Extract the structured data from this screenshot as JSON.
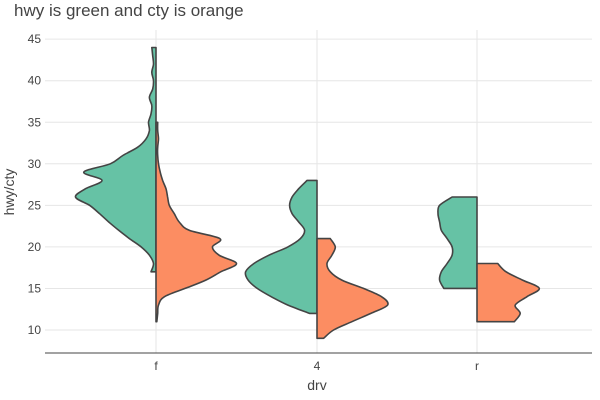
{
  "chart_data": {
    "type": "split-violin",
    "title": "hwy is green and cty is orange",
    "xlabel": "drv",
    "ylabel": "hwy/cty",
    "categories": [
      "f",
      "4",
      "r"
    ],
    "yticks": [
      10,
      15,
      20,
      25,
      30,
      35,
      40,
      45
    ],
    "ylim": [
      7.5,
      45.5
    ],
    "grid": true,
    "series": [
      {
        "side": "left",
        "color": "#66c2a5"
      },
      {
        "side": "right",
        "color": "#fc8d62"
      }
    ],
    "violins": [
      {
        "category": "f",
        "side": "left",
        "color": "#66c2a5",
        "range": [
          17,
          44
        ],
        "profile": [
          [
            17,
            0.06
          ],
          [
            18,
            0.03
          ],
          [
            19,
            0.08
          ],
          [
            20,
            0.18
          ],
          [
            21,
            0.32
          ],
          [
            22,
            0.45
          ],
          [
            23,
            0.57
          ],
          [
            24,
            0.68
          ],
          [
            25,
            0.8
          ],
          [
            26,
            0.97
          ],
          [
            27,
            0.85
          ],
          [
            28,
            0.65
          ],
          [
            29,
            0.87
          ],
          [
            30,
            0.55
          ],
          [
            31,
            0.4
          ],
          [
            32,
            0.22
          ],
          [
            33,
            0.12
          ],
          [
            34,
            0.08
          ],
          [
            35,
            0.09
          ],
          [
            36,
            0.06
          ],
          [
            37,
            0.05
          ],
          [
            38,
            0.08
          ],
          [
            39,
            0.04
          ],
          [
            40,
            0.03
          ],
          [
            41,
            0.05
          ],
          [
            42,
            0.03
          ],
          [
            43,
            0.04
          ],
          [
            44,
            0.05
          ]
        ]
      },
      {
        "category": "f",
        "side": "right",
        "color": "#fc8d62",
        "range": [
          11,
          35
        ],
        "profile": [
          [
            11,
            0.01
          ],
          [
            12,
            0.02
          ],
          [
            13,
            0.03
          ],
          [
            14,
            0.1
          ],
          [
            15,
            0.35
          ],
          [
            16,
            0.6
          ],
          [
            17,
            0.78
          ],
          [
            18,
            0.97
          ],
          [
            19,
            0.76
          ],
          [
            20,
            0.68
          ],
          [
            21,
            0.77
          ],
          [
            22,
            0.4
          ],
          [
            23,
            0.28
          ],
          [
            24,
            0.22
          ],
          [
            25,
            0.16
          ],
          [
            26,
            0.14
          ],
          [
            27,
            0.12
          ],
          [
            28,
            0.08
          ],
          [
            29,
            0.05
          ],
          [
            30,
            0.03
          ],
          [
            31,
            0.02
          ],
          [
            32,
            0.02
          ],
          [
            33,
            0.03
          ],
          [
            34,
            0.02
          ],
          [
            35,
            0.02
          ]
        ]
      },
      {
        "category": "4",
        "side": "left",
        "color": "#66c2a5",
        "range": [
          12,
          28
        ],
        "profile": [
          [
            12,
            0.09
          ],
          [
            13,
            0.35
          ],
          [
            14,
            0.55
          ],
          [
            15,
            0.72
          ],
          [
            16,
            0.83
          ],
          [
            17,
            0.86
          ],
          [
            18,
            0.76
          ],
          [
            19,
            0.58
          ],
          [
            20,
            0.35
          ],
          [
            21,
            0.2
          ],
          [
            22,
            0.15
          ],
          [
            23,
            0.22
          ],
          [
            24,
            0.3
          ],
          [
            25,
            0.33
          ],
          [
            26,
            0.3
          ],
          [
            27,
            0.22
          ],
          [
            28,
            0.12
          ]
        ]
      },
      {
        "category": "4",
        "side": "right",
        "color": "#fc8d62",
        "range": [
          9,
          21
        ],
        "profile": [
          [
            9,
            0.08
          ],
          [
            10,
            0.2
          ],
          [
            11,
            0.42
          ],
          [
            12,
            0.65
          ],
          [
            13,
            0.85
          ],
          [
            14,
            0.78
          ],
          [
            15,
            0.56
          ],
          [
            16,
            0.3
          ],
          [
            17,
            0.16
          ],
          [
            18,
            0.12
          ],
          [
            19,
            0.18
          ],
          [
            20,
            0.22
          ],
          [
            21,
            0.16
          ]
        ]
      },
      {
        "category": "r",
        "side": "left",
        "color": "#66c2a5",
        "range": [
          15,
          26
        ],
        "profile": [
          [
            15,
            0.4
          ],
          [
            16,
            0.45
          ],
          [
            17,
            0.43
          ],
          [
            18,
            0.36
          ],
          [
            19,
            0.3
          ],
          [
            20,
            0.3
          ],
          [
            21,
            0.36
          ],
          [
            22,
            0.43
          ],
          [
            23,
            0.45
          ],
          [
            24,
            0.47
          ],
          [
            25,
            0.45
          ],
          [
            26,
            0.3
          ]
        ]
      },
      {
        "category": "r",
        "side": "right",
        "color": "#fc8d62",
        "range": [
          11,
          18
        ],
        "profile": [
          [
            11,
            0.45
          ],
          [
            12,
            0.52
          ],
          [
            13,
            0.46
          ],
          [
            14,
            0.6
          ],
          [
            15,
            0.75
          ],
          [
            16,
            0.55
          ],
          [
            17,
            0.35
          ],
          [
            18,
            0.25
          ]
        ]
      }
    ]
  }
}
